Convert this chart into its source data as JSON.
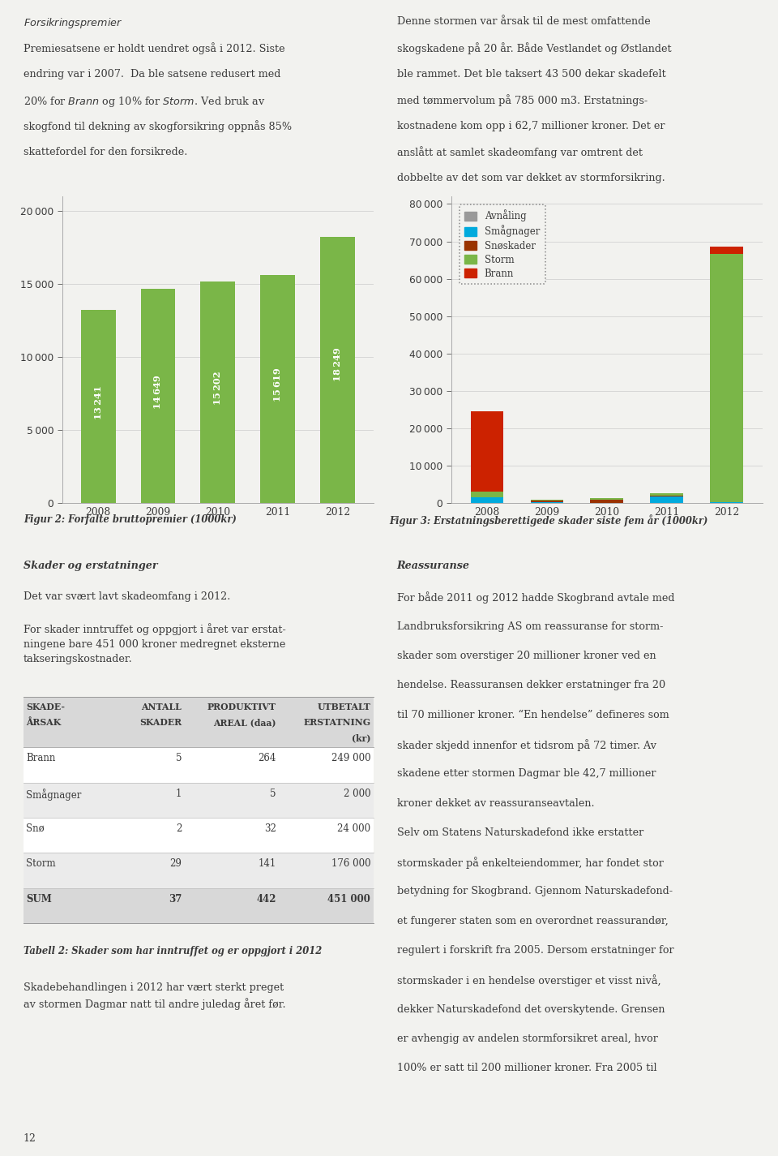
{
  "page_bg": "#f2f2ef",
  "chart_bg": "#f2f2ef",
  "fig2_years": [
    "2008",
    "2009",
    "2010",
    "2011",
    "2012"
  ],
  "fig2_values": [
    13241,
    14649,
    15202,
    15619,
    18249
  ],
  "fig2_bar_color": "#7ab648",
  "fig2_yticks": [
    0,
    5000,
    10000,
    15000,
    20000
  ],
  "fig2_ylim": [
    0,
    21000
  ],
  "fig2_caption": "Figur 2: Forfalte bruttopremier (1000kr)",
  "fig3_years": [
    "2008",
    "2009",
    "2010",
    "2011",
    "2012"
  ],
  "fig3_avnaling": [
    0,
    0,
    0,
    0,
    0
  ],
  "fig3_smaagnager": [
    1400,
    150,
    0,
    1700,
    100
  ],
  "fig3_snoskader": [
    0,
    400,
    900,
    150,
    0
  ],
  "fig3_storm": [
    1600,
    400,
    400,
    700,
    66500
  ],
  "fig3_brann": [
    21500,
    0,
    0,
    0,
    2000
  ],
  "fig3_color_avnaling": "#999999",
  "fig3_color_smaagnager": "#00aadd",
  "fig3_color_snoskader": "#993300",
  "fig3_color_storm": "#7ab648",
  "fig3_color_brann": "#cc2200",
  "fig3_yticks": [
    0,
    10000,
    20000,
    30000,
    40000,
    50000,
    60000,
    70000,
    80000
  ],
  "fig3_ylim": [
    0,
    82000
  ],
  "fig3_caption": "Figur 3: Erstatningsberettigede skader siste fem år (1000kr)",
  "table_headers_line1": [
    "SKADE-",
    "ANTALL",
    "PRODUKTIVT",
    "UTBETALT"
  ],
  "table_headers_line2": [
    "ÅRSAK",
    "SKADER",
    "AREAL (daa)",
    "ERSTATNING"
  ],
  "table_headers_line3": [
    "",
    "",
    "",
    "(kr)"
  ],
  "table_rows": [
    [
      "Brann",
      "5",
      "264",
      "249 000"
    ],
    [
      "Smågnager",
      "1",
      "5",
      "2 000"
    ],
    [
      "Snø",
      "2",
      "32",
      "24 000"
    ],
    [
      "Storm",
      "29",
      "141",
      "176 000"
    ],
    [
      "SUM",
      "37",
      "442",
      "451 000"
    ]
  ],
  "table_caption": "Tabell 2: Skader som har inntruffet og er oppgjort i 2012",
  "page_number": "12",
  "text_color": "#3a3a3a",
  "tick_color": "#555555"
}
